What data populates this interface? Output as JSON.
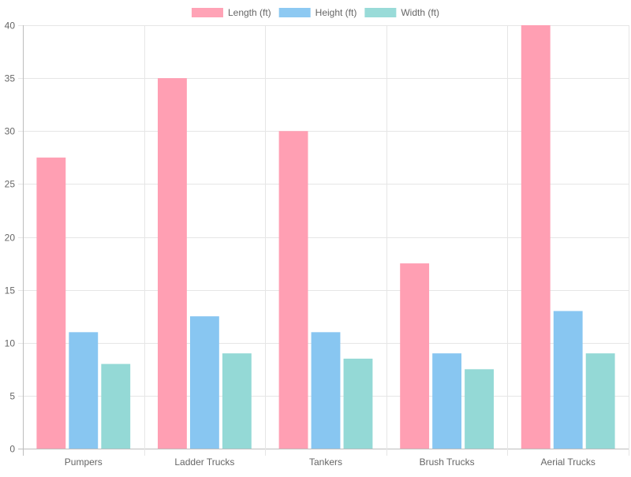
{
  "chart_data": {
    "type": "bar",
    "categories": [
      "Pumpers",
      "Ladder Trucks",
      "Tankers",
      "Brush Trucks",
      "Aerial Trucks"
    ],
    "series": [
      {
        "name": "Length (ft)",
        "values": [
          27.5,
          35,
          30,
          17.5,
          40
        ],
        "color": "#ff9fb3",
        "legend_color": "#ffa3b6"
      },
      {
        "name": "Height (ft)",
        "values": [
          11,
          12.5,
          11,
          9,
          13
        ],
        "color": "#88c6f1",
        "legend_color": "#8dc9f2"
      },
      {
        "name": "Width (ft)",
        "values": [
          8,
          9,
          8.5,
          7.5,
          9
        ],
        "color": "#94d9d6",
        "legend_color": "#99dbd8"
      }
    ],
    "ylim": [
      0,
      40
    ],
    "yticks": [
      0,
      5,
      10,
      15,
      20,
      25,
      30,
      35,
      40
    ],
    "grid": true,
    "legend_position": "top"
  }
}
